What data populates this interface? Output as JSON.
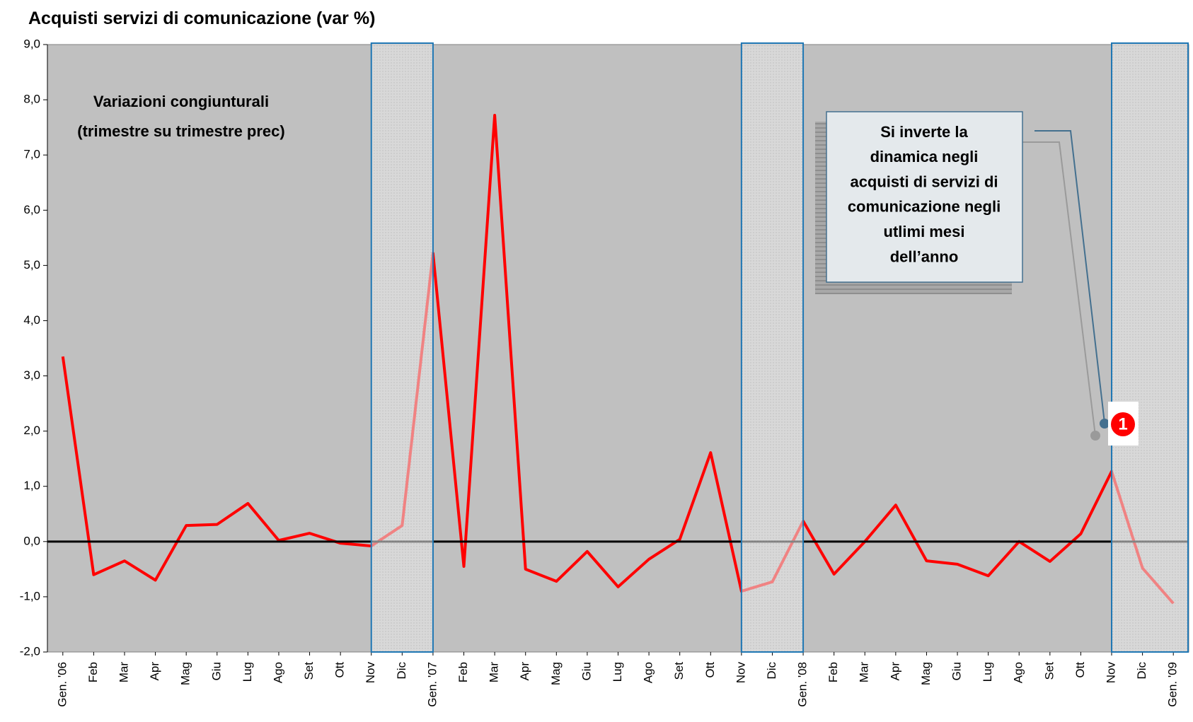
{
  "chart_data": {
    "type": "line",
    "title": "Acquisti servizi di comunicazione (var %)",
    "annotation": [
      "Variazioni congiunturali",
      "(trimestre su trimestre prec)"
    ],
    "callout": [
      "Si inverte la",
      "dinamica negli",
      "acquisti di servizi di",
      "comunicazione negli",
      "utlimi mesi",
      "dell’anno"
    ],
    "callout_number": "1",
    "categories": [
      "Gen. '06",
      "Feb",
      "Mar",
      "Apr",
      "Mag",
      "Giu",
      "Lug",
      "Ago",
      "Set",
      "Ott",
      "Nov",
      "Dic",
      "Gen. '07",
      "Feb",
      "Mar",
      "Apr",
      "Mag",
      "Giu",
      "Lug",
      "Ago",
      "Set",
      "Ott",
      "Nov",
      "Dic",
      "Gen. '08",
      "Feb",
      "Mar",
      "Apr",
      "Mag",
      "Giu",
      "Lug",
      "Ago",
      "Set",
      "Ott",
      "Nov",
      "Dic",
      "Gen. '09"
    ],
    "values": [
      3.35,
      -0.6,
      -0.35,
      -0.7,
      0.29,
      0.31,
      0.69,
      0.02,
      0.15,
      -0.03,
      -0.08,
      0.29,
      5.22,
      -0.45,
      7.72,
      -0.5,
      -0.72,
      -0.18,
      -0.82,
      -0.32,
      0.04,
      1.61,
      -0.9,
      -0.73,
      0.37,
      -0.59,
      0.0,
      0.66,
      -0.35,
      -0.41,
      -0.62,
      0.0,
      -0.36,
      0.14,
      1.27,
      -0.48,
      -1.12
    ],
    "color": "#ff0000",
    "highlight_spans": [
      [
        10,
        12
      ],
      [
        22,
        24
      ],
      [
        34,
        36
      ]
    ],
    "ylim": [
      -2,
      9
    ],
    "yticks": [
      {
        "value": -2,
        "label": "-2,0"
      },
      {
        "value": -1,
        "label": "-1,0"
      },
      {
        "value": 0,
        "label": "0,0"
      },
      {
        "value": 1,
        "label": "1,0"
      },
      {
        "value": 2,
        "label": "2,0"
      },
      {
        "value": 3,
        "label": "3,0"
      },
      {
        "value": 4,
        "label": "4,0"
      },
      {
        "value": 5,
        "label": "5,0"
      },
      {
        "value": 6,
        "label": "6,0"
      },
      {
        "value": 7,
        "label": "7,0"
      },
      {
        "value": 8,
        "label": "8,0"
      },
      {
        "value": 9,
        "label": "9,0"
      }
    ],
    "grid": false
  }
}
